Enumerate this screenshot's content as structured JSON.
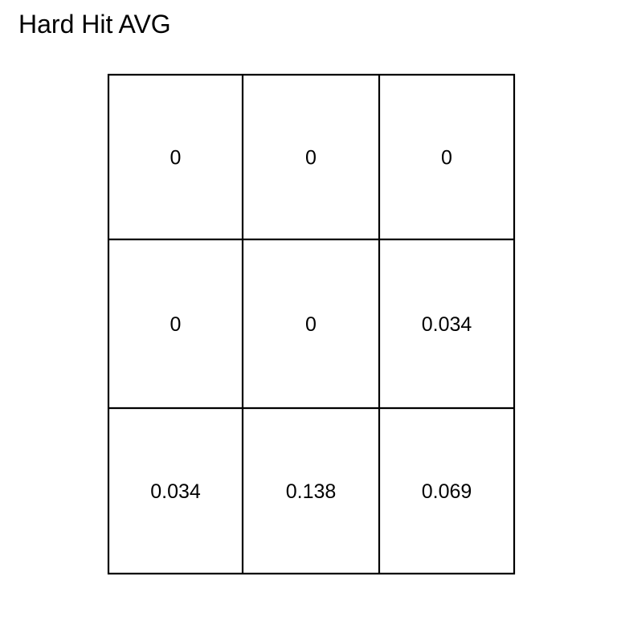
{
  "title": "Hard Hit AVG",
  "chart_data": {
    "type": "heatmap",
    "title": "Hard Hit AVG",
    "rows": 3,
    "cols": 3,
    "values": [
      [
        "0",
        "0",
        "0"
      ],
      [
        "0",
        "0",
        "0.034"
      ],
      [
        "0.034",
        "0.138",
        "0.069"
      ]
    ],
    "grid": true
  }
}
